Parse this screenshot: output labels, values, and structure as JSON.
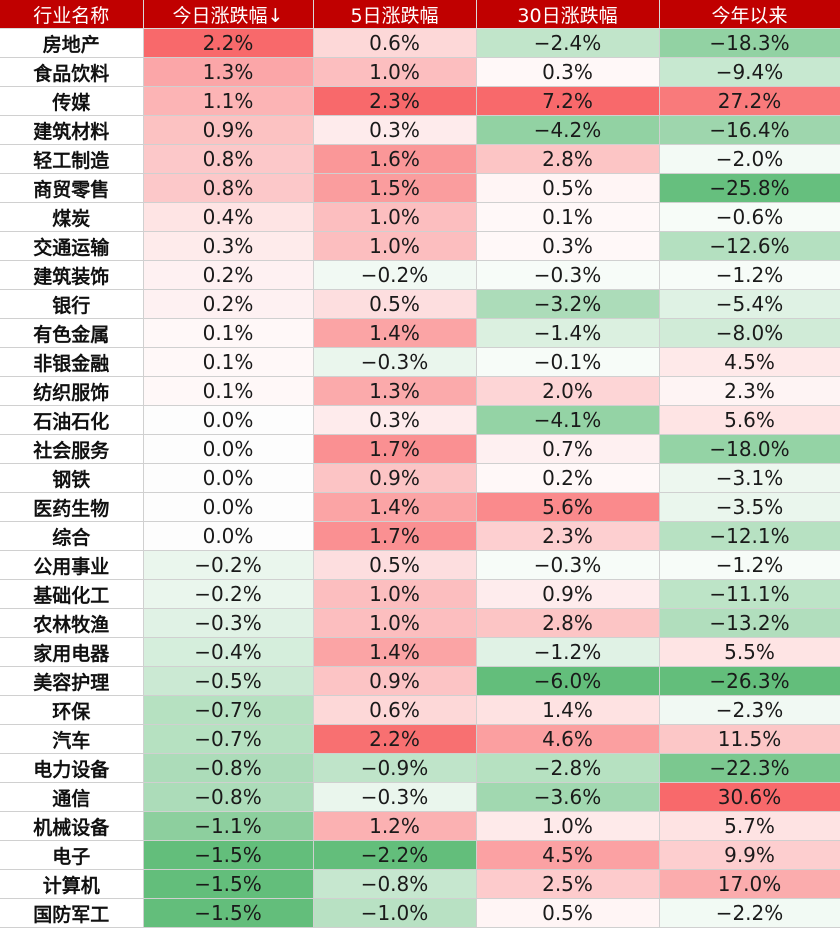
{
  "headers": [
    "行业名称",
    "今日涨跌幅↓",
    "5日涨跌幅",
    "30日涨跌幅",
    "今年以来"
  ],
  "colors": {
    "header_bg": "#c00000",
    "header_text": "#ffffff",
    "positive_max": "#f8696b",
    "negative_max": "#63be7b"
  },
  "rows": [
    {
      "name": "房地产",
      "today": "2.2%",
      "d5": "0.6%",
      "d30": "−2.4%",
      "ytd": "−18.3%"
    },
    {
      "name": "食品饮料",
      "today": "1.3%",
      "d5": "1.0%",
      "d30": "0.3%",
      "ytd": "−9.4%"
    },
    {
      "name": "传媒",
      "today": "1.1%",
      "d5": "2.3%",
      "d30": "7.2%",
      "ytd": "27.2%"
    },
    {
      "name": "建筑材料",
      "today": "0.9%",
      "d5": "0.3%",
      "d30": "−4.2%",
      "ytd": "−16.4%"
    },
    {
      "name": "轻工制造",
      "today": "0.8%",
      "d5": "1.6%",
      "d30": "2.8%",
      "ytd": "−2.0%"
    },
    {
      "name": "商贸零售",
      "today": "0.8%",
      "d5": "1.5%",
      "d30": "0.5%",
      "ytd": "−25.8%"
    },
    {
      "name": "煤炭",
      "today": "0.4%",
      "d5": "1.0%",
      "d30": "0.1%",
      "ytd": "−0.6%"
    },
    {
      "name": "交通运输",
      "today": "0.3%",
      "d5": "1.0%",
      "d30": "0.3%",
      "ytd": "−12.6%"
    },
    {
      "name": "建筑装饰",
      "today": "0.2%",
      "d5": "−0.2%",
      "d30": "−0.3%",
      "ytd": "−1.2%"
    },
    {
      "name": "银行",
      "today": "0.2%",
      "d5": "0.5%",
      "d30": "−3.2%",
      "ytd": "−5.4%"
    },
    {
      "name": "有色金属",
      "today": "0.1%",
      "d5": "1.4%",
      "d30": "−1.4%",
      "ytd": "−8.0%"
    },
    {
      "name": "非银金融",
      "today": "0.1%",
      "d5": "−0.3%",
      "d30": "−0.1%",
      "ytd": "4.5%"
    },
    {
      "name": "纺织服饰",
      "today": "0.1%",
      "d5": "1.3%",
      "d30": "2.0%",
      "ytd": "2.3%"
    },
    {
      "name": "石油石化",
      "today": "0.0%",
      "d5": "0.3%",
      "d30": "−4.1%",
      "ytd": "5.6%"
    },
    {
      "name": "社会服务",
      "today": "0.0%",
      "d5": "1.7%",
      "d30": "0.7%",
      "ytd": "−18.0%"
    },
    {
      "name": "钢铁",
      "today": "0.0%",
      "d5": "0.9%",
      "d30": "0.2%",
      "ytd": "−3.1%"
    },
    {
      "name": "医药生物",
      "today": "0.0%",
      "d5": "1.4%",
      "d30": "5.6%",
      "ytd": "−3.5%"
    },
    {
      "name": "综合",
      "today": "0.0%",
      "d5": "1.7%",
      "d30": "2.3%",
      "ytd": "−12.1%"
    },
    {
      "name": "公用事业",
      "today": "−0.2%",
      "d5": "0.5%",
      "d30": "−0.3%",
      "ytd": "−1.2%"
    },
    {
      "name": "基础化工",
      "today": "−0.2%",
      "d5": "1.0%",
      "d30": "0.9%",
      "ytd": "−11.1%"
    },
    {
      "name": "农林牧渔",
      "today": "−0.3%",
      "d5": "1.0%",
      "d30": "2.8%",
      "ytd": "−13.2%"
    },
    {
      "name": "家用电器",
      "today": "−0.4%",
      "d5": "1.4%",
      "d30": "−1.2%",
      "ytd": "5.5%"
    },
    {
      "name": "美容护理",
      "today": "−0.5%",
      "d5": "0.9%",
      "d30": "−6.0%",
      "ytd": "−26.3%"
    },
    {
      "name": "环保",
      "today": "−0.7%",
      "d5": "0.6%",
      "d30": "1.4%",
      "ytd": "−2.3%"
    },
    {
      "name": "汽车",
      "today": "−0.7%",
      "d5": "2.2%",
      "d30": "4.6%",
      "ytd": "11.5%"
    },
    {
      "name": "电力设备",
      "today": "−0.8%",
      "d5": "−0.9%",
      "d30": "−2.8%",
      "ytd": "−22.3%"
    },
    {
      "name": "通信",
      "today": "−0.8%",
      "d5": "−0.3%",
      "d30": "−3.6%",
      "ytd": "30.6%"
    },
    {
      "name": "机械设备",
      "today": "−1.1%",
      "d5": "1.2%",
      "d30": "1.0%",
      "ytd": "5.7%"
    },
    {
      "name": "电子",
      "today": "−1.5%",
      "d5": "−2.2%",
      "d30": "4.5%",
      "ytd": "9.9%"
    },
    {
      "name": "计算机",
      "today": "−1.5%",
      "d5": "−0.8%",
      "d30": "2.5%",
      "ytd": "17.0%"
    },
    {
      "name": "国防军工",
      "today": "−1.5%",
      "d5": "−1.0%",
      "d30": "0.5%",
      "ytd": "−2.2%"
    }
  ]
}
